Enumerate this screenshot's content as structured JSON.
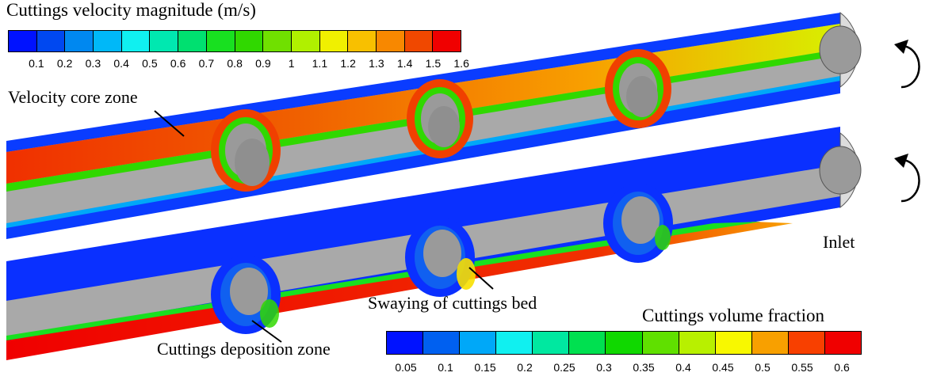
{
  "velocity_colorbar": {
    "title": "Cuttings velocity magnitude (m/s)",
    "ticks": [
      "0.1",
      "0.2",
      "0.3",
      "0.4",
      "0.5",
      "0.6",
      "0.7",
      "0.8",
      "0.9",
      "1",
      "1.1",
      "1.2",
      "1.3",
      "1.4",
      "1.5",
      "1.6"
    ],
    "colors": [
      "#0012ff",
      "#0048f0",
      "#0088f0",
      "#00b8f8",
      "#10f0f0",
      "#00e8b0",
      "#00e070",
      "#18e020",
      "#30d800",
      "#70e000",
      "#b0f000",
      "#f0f000",
      "#f8c000",
      "#f88800",
      "#f04800",
      "#f00000"
    ]
  },
  "volume_colorbar": {
    "title": "Cuttings volume fraction",
    "ticks": [
      "0.05",
      "0.1",
      "0.15",
      "0.2",
      "0.25",
      "0.3",
      "0.35",
      "0.4",
      "0.45",
      "0.5",
      "0.55",
      "0.6"
    ],
    "colors": [
      "#0012ff",
      "#0060f0",
      "#00a8f8",
      "#10f0f0",
      "#00e8a0",
      "#00e050",
      "#10d800",
      "#60e000",
      "#b8f000",
      "#f8f800",
      "#f8a000",
      "#f84000",
      "#f00000"
    ]
  },
  "annotations": {
    "velocity_core": "Velocity core zone",
    "swaying": "Swaying of cuttings bed",
    "deposition": "Cuttings deposition zone",
    "inlet": "Inlet"
  }
}
